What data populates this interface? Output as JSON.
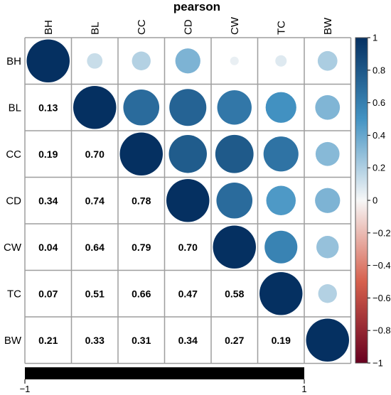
{
  "chart_data": {
    "type": "heatmap",
    "title": "pearson",
    "variables": [
      "BH",
      "BL",
      "CC",
      "CD",
      "CW",
      "TC",
      "BW"
    ],
    "matrix": [
      [
        1.0,
        0.13,
        0.19,
        0.34,
        0.04,
        0.07,
        0.21
      ],
      [
        0.13,
        1.0,
        0.7,
        0.74,
        0.64,
        0.51,
        0.33
      ],
      [
        0.19,
        0.7,
        1.0,
        0.78,
        0.79,
        0.66,
        0.31
      ],
      [
        0.34,
        0.74,
        0.78,
        1.0,
        0.7,
        0.47,
        0.34
      ],
      [
        0.04,
        0.64,
        0.79,
        0.7,
        1.0,
        0.58,
        0.27
      ],
      [
        0.07,
        0.51,
        0.66,
        0.47,
        0.58,
        1.0,
        0.19
      ],
      [
        0.21,
        0.33,
        0.31,
        0.34,
        0.27,
        0.19,
        1.0
      ]
    ],
    "lower_triangle": "numbers",
    "upper_triangle": "circles",
    "colorbar": {
      "range": [
        -1,
        1
      ],
      "ticks": [
        "1",
        "0.8",
        "0.6",
        "0.4",
        "0.2",
        "0",
        "−0.2",
        "−0.4",
        "−0.6",
        "−0.8",
        "−1"
      ],
      "tick_values": [
        1,
        0.8,
        0.6,
        0.4,
        0.2,
        0,
        -0.2,
        -0.4,
        -0.6,
        -0.8,
        -1
      ],
      "colors": {
        "neg_end": "#67001f",
        "neg_mid": "#d6604d",
        "neutral": "#f7f7f7",
        "pos_mid": "#4393c3",
        "pos_end": "#053061"
      }
    },
    "bottom_bar": {
      "left_label": "−1",
      "right_label": "1",
      "color": "#000000"
    },
    "grid_color": "#9e9e9e"
  }
}
